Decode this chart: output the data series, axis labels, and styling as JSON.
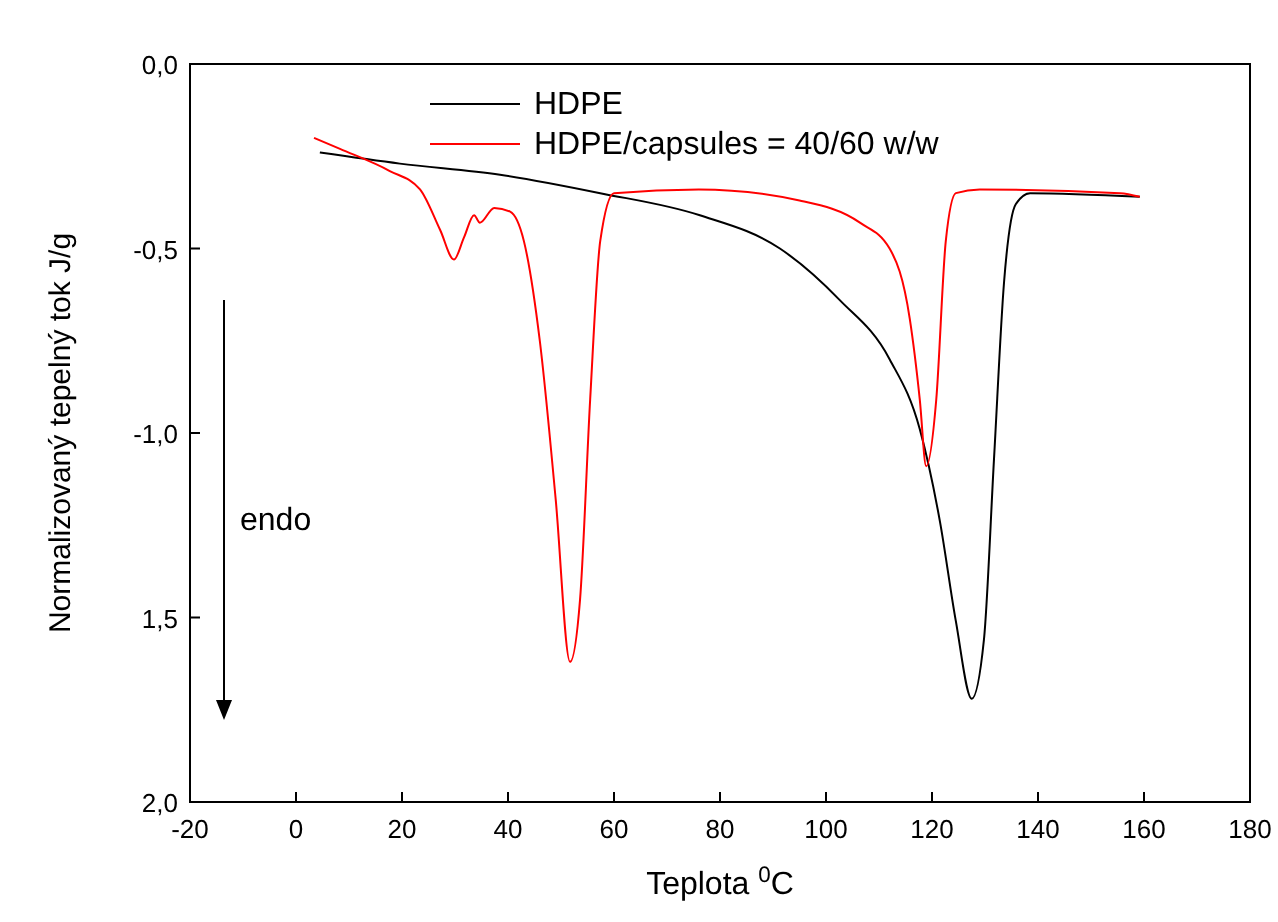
{
  "chart_data": {
    "type": "line",
    "xlabel": "Teplota  $^{0}$C",
    "ylabel": "Normalizovaný tepelný  tok  J/g",
    "xlim": [
      -20,
      180
    ],
    "xticks": [
      -20,
      0,
      20,
      40,
      60,
      80,
      100,
      120,
      140,
      160,
      180
    ],
    "ylim": [
      -2,
      0
    ],
    "yticks": [
      {
        "value": 0,
        "label": "0,0"
      },
      {
        "value": -0.5,
        "label": "-0,5"
      },
      {
        "value": -1,
        "label": "-1,0"
      },
      {
        "value": -1.5,
        "label": "1,5"
      },
      {
        "value": -2,
        "label": "2,0"
      }
    ],
    "legend": "top left",
    "grid": false,
    "marker": "none",
    "line_style": "solid",
    "annotations": [
      "endo"
    ],
    "series": [
      {
        "name": "HDPE",
        "color": "#000000",
        "x": [
          4.5,
          19.6,
          38.5,
          57.4,
          76.2,
          91.3,
          102.6,
          112,
          117.7,
          121.5,
          124.5,
          127.5,
          129.8,
          131.7,
          133.6,
          135.8,
          138.5,
          159.2
        ],
        "values": [
          -0.24,
          -0.27,
          -0.3,
          -0.35,
          -0.41,
          -0.5,
          -0.64,
          -0.8,
          -0.99,
          -1.24,
          -1.51,
          -1.72,
          -1.56,
          -1.07,
          -0.59,
          -0.38,
          -0.35,
          -0.36
        ]
      },
      {
        "name": "HDPE/capsules = 40/60 w/w",
        "color": "#ff0000",
        "x": [
          3.4,
          8.3,
          17.7,
          23.4,
          27.2,
          29.8,
          31.7,
          33.6,
          34.7,
          37.4,
          40.4,
          43,
          46,
          49,
          51.7,
          53.6,
          55.5,
          57.4,
          60,
          76,
          95,
          106.4,
          112,
          115.8,
          117.7,
          118.9,
          120.8,
          122.6,
          124.5,
          129,
          155.5,
          159.2
        ],
        "values": [
          -0.2,
          -0.23,
          -0.29,
          -0.34,
          -0.45,
          -0.53,
          -0.47,
          -0.41,
          -0.43,
          -0.39,
          -0.4,
          -0.48,
          -0.75,
          -1.18,
          -1.62,
          -1.45,
          -0.91,
          -0.48,
          -0.35,
          -0.34,
          -0.37,
          -0.43,
          -0.5,
          -0.69,
          -0.91,
          -1.09,
          -0.91,
          -0.48,
          -0.35,
          -0.34,
          -0.35,
          -0.36
        ]
      }
    ]
  }
}
